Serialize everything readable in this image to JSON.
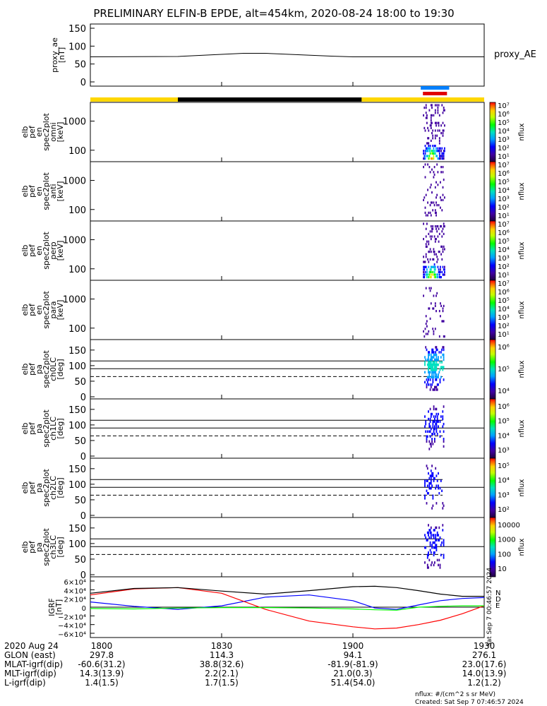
{
  "title": "PRELIMINARY ELFIN-B EPDE, alt=454km, 2020-08-24 18:00 to 19:30",
  "chart_data": [
    {
      "type": "line",
      "panel": "proxy_ae",
      "ylabel_lines": [
        "proxy_ae",
        "[nT]"
      ],
      "legend": "proxy_AE",
      "ylim": [
        0,
        150
      ],
      "yticks": [
        "150",
        "100",
        "50",
        "0"
      ],
      "x_minutes": [
        0,
        20,
        35,
        40,
        55,
        60,
        90
      ],
      "values": [
        70,
        71,
        80,
        80,
        72,
        70,
        70
      ]
    },
    {
      "type": "heatmap",
      "panel": "en_spec2plot_omni",
      "ylabel_lines": [
        "elb",
        "pef",
        "en",
        "spec2plot",
        "omni",
        "[keV]"
      ],
      "yscale": "log",
      "yticks": [
        "1000",
        "100"
      ],
      "colorbar": {
        "label": "nflux",
        "ticks": [
          "10⁷",
          "10⁶",
          "10⁵",
          "10⁴",
          "10³",
          "10²",
          "10¹"
        ]
      },
      "x_minutes_range": [
        76,
        81
      ],
      "peak_energy_keV": 70
    },
    {
      "type": "heatmap",
      "panel": "en_spec2plot_anti",
      "ylabel_lines": [
        "elb",
        "pef",
        "en",
        "spec2plot",
        "anti",
        "[keV]"
      ],
      "yscale": "log",
      "yticks": [
        "1000",
        "100"
      ],
      "colorbar": {
        "label": "nflux",
        "ticks": [
          "10⁷",
          "10⁶",
          "10⁵",
          "10⁴",
          "10³",
          "10²",
          "10¹"
        ]
      }
    },
    {
      "type": "heatmap",
      "panel": "en_spec2plot_perp",
      "ylabel_lines": [
        "elb",
        "pef",
        "en",
        "spec2plot",
        "perp",
        "[keV]"
      ],
      "yscale": "log",
      "yticks": [
        "1000",
        "100"
      ],
      "colorbar": {
        "label": "nflux",
        "ticks": [
          "10⁷",
          "10⁶",
          "10⁵",
          "10⁴",
          "10³",
          "10²",
          "10¹"
        ]
      }
    },
    {
      "type": "heatmap",
      "panel": "en_spec2plot_para",
      "ylabel_lines": [
        "elb",
        "pef",
        "en",
        "spec2plot",
        "para",
        "[keV]"
      ],
      "yscale": "log",
      "yticks": [
        "1000",
        "100"
      ],
      "colorbar": {
        "label": "nflux",
        "ticks": [
          "10⁷",
          "10⁶",
          "10⁵",
          "10⁴",
          "10³",
          "10²",
          "10¹"
        ]
      }
    },
    {
      "type": "heatmap",
      "panel": "pa_spec2plot_ch0LC",
      "ylabel_lines": [
        "elb",
        "pef",
        "pa",
        "spec2plot",
        "ch0LC",
        "[deg]"
      ],
      "ylim": [
        0,
        180
      ],
      "yticks": [
        "150",
        "100",
        "50",
        "0"
      ],
      "colorbar": {
        "label": "nflux",
        "ticks": [
          "10⁶",
          "10⁵",
          "10⁴"
        ]
      }
    },
    {
      "type": "heatmap",
      "panel": "pa_spec2plot_ch1LC",
      "ylabel_lines": [
        "elb",
        "pef",
        "pa",
        "spec2plot",
        "ch1LC",
        "[deg]"
      ],
      "ylim": [
        0,
        180
      ],
      "yticks": [
        "150",
        "100",
        "50",
        "0"
      ],
      "colorbar": {
        "label": "nflux",
        "ticks": [
          "10⁶",
          "10⁵",
          "10⁴",
          "10³"
        ]
      }
    },
    {
      "type": "heatmap",
      "panel": "pa_spec2plot_ch2LC",
      "ylabel_lines": [
        "elb",
        "pef",
        "pa",
        "spec2plot",
        "ch2LC",
        "[deg]"
      ],
      "ylim": [
        0,
        180
      ],
      "yticks": [
        "150",
        "100",
        "50",
        "0"
      ],
      "colorbar": {
        "label": "nflux",
        "ticks": [
          "10⁵",
          "10⁴",
          "10³",
          "10²"
        ]
      }
    },
    {
      "type": "heatmap",
      "panel": "pa_spec2plot_ch3LC",
      "ylabel_lines": [
        "elb",
        "pef",
        "pa",
        "spec2plot",
        "ch3LC",
        "[deg]"
      ],
      "ylim": [
        0,
        180
      ],
      "yticks": [
        "150",
        "100",
        "50",
        "0"
      ],
      "colorbar": {
        "label": "nflux",
        "ticks": [
          "10000",
          "1000",
          "100",
          "10"
        ]
      }
    },
    {
      "type": "line",
      "panel": "IGRF",
      "ylabel_lines": [
        "IGRF",
        "[nT]"
      ],
      "ylim": [
        -60000,
        60000
      ],
      "yticks": [
        "6×10⁴",
        "4×10⁴",
        "2×10⁴",
        "0",
        "−2×10⁴",
        "−4×10⁴",
        "−6×10⁴"
      ],
      "legend": [
        "N",
        "D",
        "E"
      ],
      "side_text": "Sat Sep 7 00:46:57 2024",
      "series": [
        {
          "name": "N",
          "color": "#0000ff",
          "x_minutes": [
            0,
            10,
            20,
            30,
            40,
            50,
            60,
            65,
            70,
            75,
            80,
            85,
            90
          ],
          "values": [
            12000,
            2000,
            -5000,
            3000,
            23000,
            28000,
            15000,
            -2000,
            -5000,
            5000,
            15000,
            20000,
            22000
          ]
        },
        {
          "name": "D",
          "color": "#ff0000",
          "x_minutes": [
            0,
            10,
            20,
            30,
            40,
            50,
            60,
            65,
            70,
            75,
            80,
            85,
            90
          ],
          "values": [
            28000,
            42000,
            45000,
            32000,
            -5000,
            -32000,
            -45000,
            -50000,
            -48000,
            -40000,
            -30000,
            -15000,
            3000
          ]
        },
        {
          "name": "E",
          "color": "#00ff00",
          "x_minutes": [
            0,
            10,
            20,
            30,
            40,
            50,
            60,
            65,
            70,
            75,
            80,
            85,
            90
          ],
          "values": [
            -3000,
            -4000,
            -2000,
            -1000,
            -1000,
            -2000,
            -4000,
            -6000,
            -7000,
            0,
            2000,
            3000,
            3000
          ]
        },
        {
          "name": "Total",
          "color": "#000000",
          "x_minutes": [
            0,
            10,
            20,
            30,
            40,
            50,
            60,
            65,
            70,
            75,
            80,
            85,
            90
          ],
          "values": [
            32000,
            43000,
            45000,
            37000,
            30000,
            38000,
            47000,
            48000,
            45000,
            38000,
            30000,
            25000,
            25000
          ]
        }
      ]
    }
  ],
  "orbit_bars": {
    "bar_blue": "#0080ff",
    "bar_red": "#e00000",
    "yellow": "#ffd700",
    "black": "#000000"
  },
  "xaxis": {
    "row_labels": [
      "2020 Aug 24",
      "GLON (east)",
      "MLAT-igrf(dip)",
      "MLT-igrf(dip)",
      "L-igrf(dip)"
    ],
    "columns": [
      {
        "time": "1800",
        "vals": [
          "297.8",
          "-60.6(31.2)",
          "14.3(13.9)",
          "1.4(1.5)"
        ]
      },
      {
        "time": "1830",
        "vals": [
          "114.3",
          "38.8(32.6)",
          "2.2(2.1)",
          "1.7(1.5)"
        ]
      },
      {
        "time": "1900",
        "vals": [
          "94.1",
          "-81.9(-81.9)",
          "21.0(0.3)",
          "51.4(54.0)"
        ]
      },
      {
        "time": "1930",
        "vals": [
          "276.1",
          "23.0(17.6)",
          "14.0(13.9)",
          "1.2(1.2)"
        ]
      }
    ]
  },
  "footer": {
    "units": "nflux: #/(cm^2 s sr MeV)",
    "created": "Created: Sat Sep  7 07:46:57 2024"
  }
}
